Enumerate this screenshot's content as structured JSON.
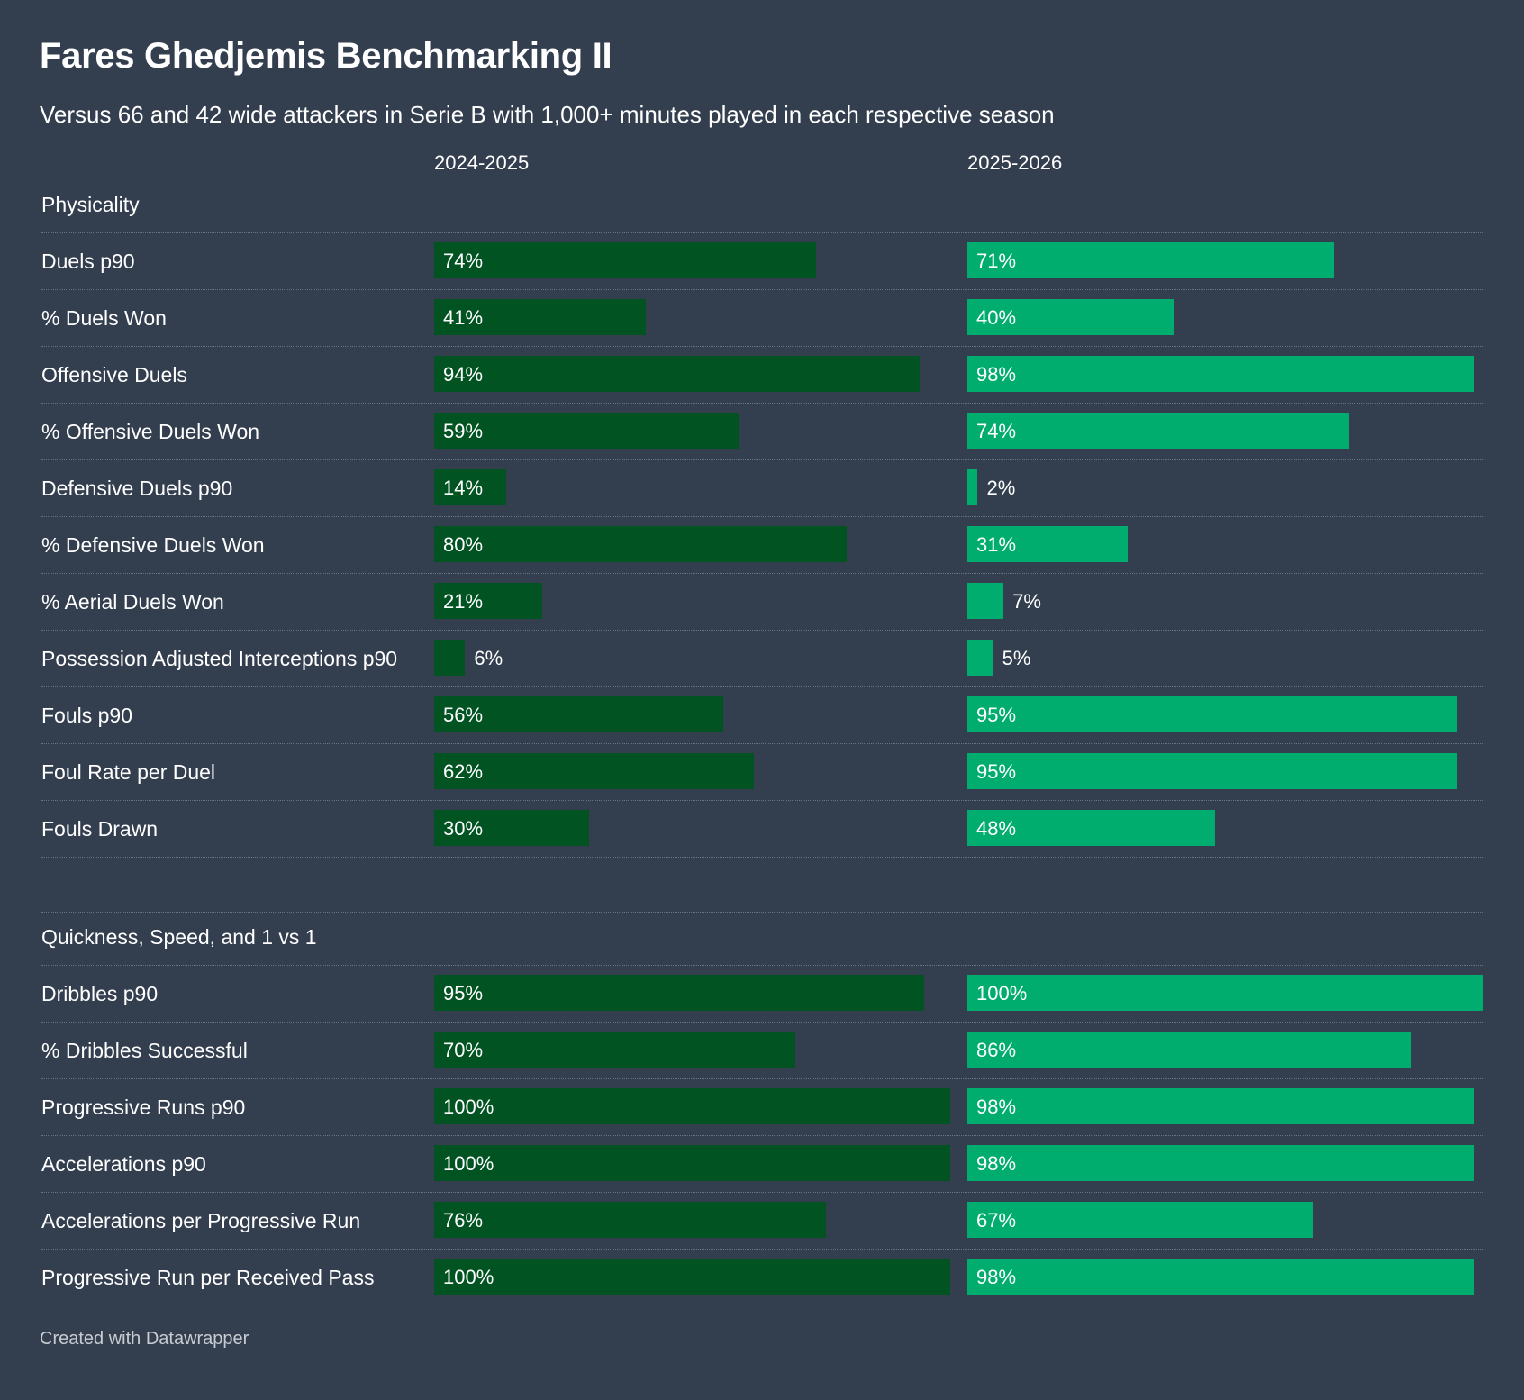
{
  "title": "Fares Ghedjemis Benchmarking II",
  "subtitle": "Versus 66 and 42 wide attackers in Serie B with 1,000+ minutes played in each respective season",
  "footer": "Created with Datawrapper",
  "colors": {
    "background": "#333e4f",
    "season1": "#015422",
    "season2": "#00ad6e"
  },
  "chart_data": {
    "type": "bar",
    "orientation": "horizontal",
    "unit": "%",
    "xlim": [
      0,
      100
    ],
    "columns": [
      "2024-2025",
      "2025-2026"
    ],
    "sections": [
      {
        "name": "Physicality",
        "rows": [
          {
            "label": "Duels p90",
            "values": [
              74,
              71
            ]
          },
          {
            "label": "% Duels Won",
            "values": [
              41,
              40
            ]
          },
          {
            "label": "Offensive Duels",
            "values": [
              94,
              98
            ]
          },
          {
            "label": "% Offensive Duels Won",
            "values": [
              59,
              74
            ]
          },
          {
            "label": "Defensive Duels p90",
            "values": [
              14,
              2
            ]
          },
          {
            "label": "% Defensive Duels Won",
            "values": [
              80,
              31
            ]
          },
          {
            "label": "% Aerial Duels Won",
            "values": [
              21,
              7
            ]
          },
          {
            "label": "Possession Adjusted Interceptions p90",
            "values": [
              6,
              5
            ]
          },
          {
            "label": "Fouls p90",
            "values": [
              56,
              95
            ]
          },
          {
            "label": "Foul Rate per Duel",
            "values": [
              62,
              95
            ]
          },
          {
            "label": "Fouls Drawn",
            "values": [
              30,
              48
            ]
          }
        ]
      },
      {
        "name": "Quickness, Speed, and 1 vs 1",
        "rows": [
          {
            "label": "Dribbles p90",
            "values": [
              95,
              100
            ]
          },
          {
            "label": "% Dribbles Successful",
            "values": [
              70,
              86
            ]
          },
          {
            "label": "Progressive Runs p90",
            "values": [
              100,
              98
            ]
          },
          {
            "label": "Accelerations p90",
            "values": [
              100,
              98
            ]
          },
          {
            "label": "Accelerations per Progressive Run",
            "values": [
              76,
              67
            ]
          },
          {
            "label": "Progressive Run per Received Pass",
            "values": [
              100,
              98
            ]
          }
        ]
      }
    ]
  }
}
